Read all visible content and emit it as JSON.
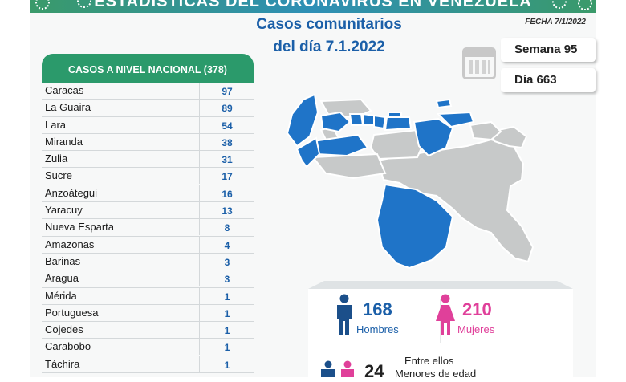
{
  "header": {
    "banner_title": "ESTADÍSTICAS DEL CORONAVIRUS EN VENEZUELA",
    "title_line1": "Casos comunitarios",
    "title_line2": "del día 7.1.2022",
    "date_label": "FECHA 7/1/2022",
    "week_label": "Semana 95",
    "day_label": "Día 663"
  },
  "national": {
    "heading": "CASOS A NIVEL NACIONAL  (378)",
    "rows": [
      {
        "state": "Caracas",
        "cases": "97"
      },
      {
        "state": "La Guaira",
        "cases": "89"
      },
      {
        "state": "Lara",
        "cases": "54"
      },
      {
        "state": "Miranda",
        "cases": "38"
      },
      {
        "state": "Zulia",
        "cases": "31"
      },
      {
        "state": "Sucre",
        "cases": "17"
      },
      {
        "state": "Anzoátegui",
        "cases": "16"
      },
      {
        "state": "Yaracuy",
        "cases": "13"
      },
      {
        "state": "Nueva Esparta",
        "cases": "8"
      },
      {
        "state": "Amazonas",
        "cases": "4"
      },
      {
        "state": "Barinas",
        "cases": "3"
      },
      {
        "state": "Aragua",
        "cases": "3"
      },
      {
        "state": "Mérida",
        "cases": "1"
      },
      {
        "state": "Portuguesa",
        "cases": "1"
      },
      {
        "state": "Cojedes",
        "cases": "1"
      },
      {
        "state": "Carabobo",
        "cases": "1"
      },
      {
        "state": "Táchira",
        "cases": "1"
      }
    ]
  },
  "gender": {
    "men_count": "168",
    "men_label": "Hombres",
    "women_count": "210",
    "women_label": "Mujeres",
    "minors_prefix": "Entre ellos",
    "minors_count": "24",
    "minors_label": "Menores de edad"
  },
  "colors": {
    "affected_state": "#1f74c8",
    "other_state": "#c7c9c9",
    "men": "#1b5fa8",
    "women": "#e0409a",
    "header_green": "#2b9a6b"
  }
}
